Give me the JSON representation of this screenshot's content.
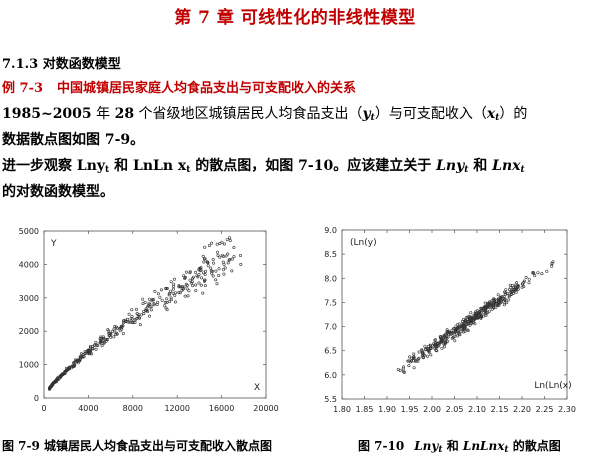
{
  "page": {
    "chapter_title": "第 7 章  可线性化的非线性模型",
    "section": "7.1.3 对数函数模型",
    "example_label": "例 7-3",
    "example_title": "中国城镇居民家庭人均食品支出与可支配收入的关系",
    "para1": {
      "years": "1985~2005",
      "t1": " 年 ",
      "n": "28",
      "t2": " 个省级地区城镇居民人均食品支出（",
      "y": "y",
      "sub_t": "t",
      "t3": "）与可支配收入（",
      "x": "x",
      "t4": "）的",
      "line2": "数据散点图如图 7-9。"
    },
    "para2": {
      "t1": "进一步观察 ",
      "lny": "Lny",
      "sub_t": "t",
      "t2": " 和 ",
      "lnln": "LnLn  x",
      "t3": " 的散点图，如图 7-10。应该建立关于 ",
      "lny_it": "Lny",
      "t4": " 和 ",
      "lnx_it": "Lnx",
      "line2": "的对数函数模型。"
    },
    "caption1": "图 7-9    城镇居民人均食品支出与可支配收入散点图",
    "caption2": {
      "num": "图 7-10",
      "lny": "Lny",
      "sub_t": "t",
      "mid": " 和 ",
      "lnlnx": "LnLnx",
      "end": " 的散点图"
    }
  },
  "chart_data": [
    {
      "type": "scatter",
      "title": "",
      "xlabel": "X",
      "ylabel": "Y",
      "xlim": [
        0,
        20000
      ],
      "ylim": [
        0,
        5000
      ],
      "xticks": [
        "0",
        "4000",
        "8000",
        "12000",
        "16000",
        "20000"
      ],
      "yticks": [
        "0",
        "1000",
        "2000",
        "3000",
        "4000",
        "5000"
      ],
      "grid": false,
      "points_note": "approx. 588 unlabeled points (28 regions × 21 years); shown as a cloud following the trend below",
      "trend": {
        "x_from": 500,
        "x_to": 18500,
        "y_at_x_from": 280,
        "y_at_x_to": 4700,
        "curvature": 0.85
      },
      "spread_relative": 0.1
    },
    {
      "type": "scatter",
      "title": "",
      "xlabel": "Ln(Ln(x)",
      "ylabel": "(Ln(y)",
      "xlim": [
        1.8,
        2.3
      ],
      "ylim": [
        5.5,
        9.0
      ],
      "xticks": [
        "1.80",
        "1.85",
        "1.90",
        "1.95",
        "2.00",
        "2.05",
        "2.10",
        "2.15",
        "2.20",
        "2.25",
        "2.30"
      ],
      "yticks": [
        "5.5",
        "6.0",
        "6.5",
        "7.0",
        "7.5",
        "8.0",
        "8.5",
        "9.0"
      ],
      "grid": false,
      "points_note": "approx. 588 unlabeled points (28 regions × 21 years); shown as a band along the trend below",
      "trend": {
        "x_from": 1.86,
        "x_to": 2.28,
        "y_at_x_from": 5.65,
        "y_at_x_to": 8.4
      },
      "spread_abs": 0.12
    }
  ]
}
